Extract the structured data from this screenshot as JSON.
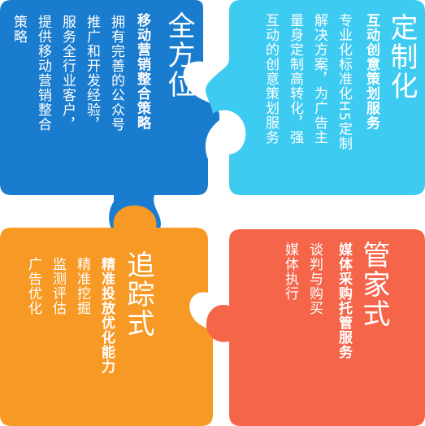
{
  "pieces": {
    "top_left": {
      "color": "#1a7ccf",
      "title": "全方位",
      "subtitle": "移动营销整合策略",
      "lines": [
        "拥有完善的公众号",
        "推广和开发经验，",
        "服务全行业客户，",
        "提供移动营销整合",
        "策略"
      ]
    },
    "top_right": {
      "color": "#3ecbf2",
      "title": "定制化",
      "subtitle": "互动创意策划服务",
      "lines": [
        "专业化标准化H5定制",
        "解决方案，为广告主",
        "量身定制高转化，强",
        "互动的创意策划服务"
      ]
    },
    "bottom_left": {
      "color": "#f79a25",
      "title": "追踪式",
      "subtitle": "精准投放优化能力",
      "lines": [
        "精准挖掘",
        "监测评估",
        "广告优化"
      ]
    },
    "bottom_right": {
      "color": "#f4654a",
      "title": "管家式",
      "subtitle": "媒体采购托管服务",
      "lines": [
        "谈判与购买",
        "媒体执行"
      ]
    }
  }
}
